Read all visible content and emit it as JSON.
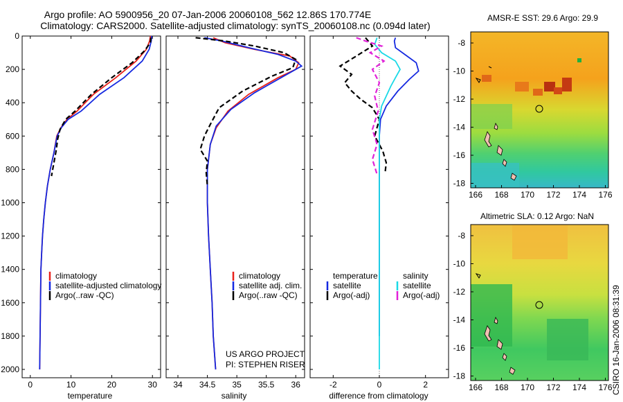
{
  "header": {
    "title_line1": "Argo profile: AO 5900956_20 07-Jan-2006 20060108_562 12.86S 170.774E",
    "title_line2": "Climatology: CARS2000. Satellite-adjusted climatology: synTS_20060108.nc (0.094d later)"
  },
  "colors": {
    "climatology": "#e8201a",
    "satellite": "#1428e0",
    "argo": "#000000",
    "sal_sat": "#19d9e6",
    "sal_argo": "#e020d8"
  },
  "chart_data": [
    {
      "id": "temperature",
      "type": "line",
      "xlabel": "temperature",
      "xlim": [
        -2,
        32
      ],
      "ylim": [
        0,
        2050
      ],
      "y_reversed": true,
      "xticks": [
        0,
        10,
        20,
        30
      ],
      "yticks": [
        0,
        200,
        400,
        600,
        800,
        1000,
        1200,
        1400,
        1600,
        1800,
        2000
      ],
      "series": [
        {
          "name": "climatology",
          "color": "#e8201a",
          "dash": false,
          "x": [
            29.5,
            29.3,
            28.5,
            26,
            21,
            15.5,
            11.5,
            9,
            7.5,
            6.5,
            5.8,
            4.9,
            4.2,
            3.7,
            3.3,
            3.0,
            2.8,
            2.6,
            2.5,
            2.4,
            2.3
          ],
          "y": [
            0,
            30,
            80,
            150,
            250,
            350,
            450,
            500,
            550,
            600,
            700,
            800,
            900,
            1000,
            1100,
            1200,
            1300,
            1400,
            1600,
            1800,
            2000
          ]
        },
        {
          "name": "satellite-adjusted climatology",
          "color": "#1428e0",
          "dash": false,
          "x": [
            29.8,
            29.7,
            29.2,
            27.5,
            23,
            17,
            12.5,
            9.3,
            7.6,
            6.6,
            5.8,
            4.9,
            4.2,
            3.7,
            3.3,
            3.0,
            2.8,
            2.6,
            2.5,
            2.4,
            2.3
          ],
          "y": [
            0,
            30,
            80,
            150,
            250,
            350,
            450,
            500,
            550,
            600,
            700,
            800,
            900,
            1000,
            1100,
            1200,
            1300,
            1400,
            1600,
            1800,
            2000
          ]
        },
        {
          "name": "Argo(..raw -QC)",
          "color": "#000000",
          "dash": true,
          "x": [
            29.6,
            29.5,
            28,
            25,
            20,
            15,
            11,
            8.7,
            7.3,
            6.7,
            6.4,
            5.8,
            5.2
          ],
          "y": [
            10,
            40,
            90,
            160,
            250,
            350,
            450,
            500,
            560,
            620,
            680,
            760,
            840
          ]
        }
      ],
      "legend": [
        "climatology",
        "satellite-adjusted climatology",
        "Argo(..raw -QC)"
      ]
    },
    {
      "id": "salinity",
      "type": "line",
      "xlabel": "salinity",
      "xlim": [
        33.8,
        36.15
      ],
      "ylim": [
        0,
        2050
      ],
      "y_reversed": true,
      "xticks": [
        34,
        34.5,
        35,
        35.5,
        36
      ],
      "xtick_labels": [
        "34",
        "34.5",
        "35",
        "35.5",
        "36"
      ],
      "series": [
        {
          "name": "climatology",
          "color": "#e8201a",
          "dash": false,
          "x": [
            34.6,
            34.8,
            35.3,
            35.9,
            36.05,
            36.0,
            35.7,
            35.2,
            34.85,
            34.65,
            34.55,
            34.5,
            34.5,
            34.52,
            34.55,
            34.58,
            34.6,
            34.62,
            34.64
          ],
          "y": [
            10,
            40,
            80,
            120,
            160,
            200,
            250,
            350,
            450,
            550,
            650,
            800,
            1000,
            1200,
            1400,
            1600,
            1800,
            1900,
            2000
          ]
        },
        {
          "name": "satellite adj. clim.",
          "color": "#1428e0",
          "dash": false,
          "x": [
            34.45,
            34.75,
            35.2,
            35.7,
            36.0,
            36.1,
            35.8,
            35.3,
            34.9,
            34.65,
            34.55,
            34.5,
            34.5,
            34.52,
            34.55,
            34.58,
            34.6,
            34.62,
            34.64
          ],
          "y": [
            10,
            30,
            70,
            110,
            150,
            180,
            240,
            340,
            440,
            540,
            650,
            800,
            1000,
            1200,
            1400,
            1600,
            1800,
            1900,
            2000
          ]
        },
        {
          "name": "Argo(..raw -QC)",
          "color": "#000000",
          "dash": true,
          "x": [
            34.3,
            34.8,
            35.3,
            35.8,
            36.0,
            35.95,
            35.6,
            35.1,
            34.7,
            34.55,
            34.45,
            34.38,
            34.5,
            34.48,
            34.5
          ],
          "y": [
            10,
            30,
            60,
            100,
            140,
            190,
            240,
            330,
            430,
            530,
            600,
            680,
            750,
            820,
            900
          ]
        }
      ],
      "legend": [
        "climatology",
        "satellite adj. clim.",
        "Argo(..raw -QC)"
      ],
      "annotation": [
        "US ARGO PROJECT",
        "PI: STEPHEN RISER"
      ]
    },
    {
      "id": "difference",
      "type": "line",
      "xlabel": "difference from climatology",
      "xlim": [
        -3,
        3
      ],
      "ylim": [
        0,
        2050
      ],
      "y_reversed": true,
      "xticks": [
        -2,
        0,
        2
      ],
      "zero_line": true,
      "series": [
        {
          "name": "temperature satellite",
          "color": "#1428e0",
          "dash": false,
          "x": [
            0.7,
            0.65,
            0.7,
            1.1,
            1.6,
            1.7,
            1.3,
            0.8,
            0.3,
            0.05,
            0.0,
            0.0,
            0.0,
            0.0,
            0.0,
            0.0,
            0.0
          ],
          "y": [
            10,
            30,
            70,
            110,
            160,
            210,
            260,
            330,
            420,
            500,
            600,
            800,
            1000,
            1200,
            1400,
            1600,
            1800
          ]
        },
        {
          "name": "temperature Argo(-adj)",
          "color": "#000000",
          "dash": true,
          "x": [
            -0.6,
            -0.3,
            -1.0,
            -1.7,
            -1.2,
            -1.5,
            -1.2,
            -0.8,
            -0.3,
            0.0,
            -0.2,
            0.15,
            0.3,
            0.25
          ],
          "y": [
            10,
            60,
            120,
            180,
            230,
            280,
            330,
            380,
            430,
            500,
            600,
            690,
            760,
            820
          ]
        },
        {
          "name": "salinity satellite",
          "color": "#19d9e6",
          "dash": false,
          "x": [
            -0.1,
            -0.2,
            0.1,
            0.7,
            0.9,
            0.7,
            0.5,
            0.3,
            0.1,
            0.0,
            0.0,
            0.0,
            0.0,
            0.0,
            0.0,
            0.0,
            0.0,
            0.0
          ],
          "y": [
            10,
            50,
            100,
            150,
            200,
            250,
            300,
            360,
            420,
            500,
            600,
            700,
            900,
            1100,
            1300,
            1500,
            1700,
            2000
          ]
        },
        {
          "name": "salinity Argo(-adj)",
          "color": "#e020d8",
          "dash": true,
          "x": [
            -1.0,
            -0.6,
            0.1,
            -0.4,
            0.2,
            -0.3,
            0.0,
            -0.2,
            -0.05,
            -0.3,
            -0.1,
            -0.3,
            -0.1
          ],
          "y": [
            10,
            30,
            60,
            100,
            150,
            200,
            280,
            360,
            450,
            560,
            650,
            740,
            830
          ]
        }
      ],
      "legend_headers": [
        "temperature",
        "salinity"
      ],
      "legend": [
        "satellite",
        "Argo(-adj)",
        "satellite",
        "Argo(-adj)"
      ]
    }
  ],
  "maps": [
    {
      "title": "AMSR-E SST: 29.6 Argo: 29.9",
      "xticks": [
        "166",
        "168",
        "170",
        "172",
        "174",
        "176"
      ],
      "yticks": [
        "-8",
        "-10",
        "-12",
        "-14",
        "-16",
        "-18"
      ]
    },
    {
      "title": "Altimetric SLA: 0.12 Argo: NaN",
      "xticks": [
        "166",
        "168",
        "170",
        "172",
        "174",
        "176"
      ],
      "yticks": [
        "-8",
        "-10",
        "-12",
        "-14",
        "-16",
        "-18"
      ]
    }
  ],
  "footer_stamp": "CSIRO 16-Jan-2006 08:31:39"
}
